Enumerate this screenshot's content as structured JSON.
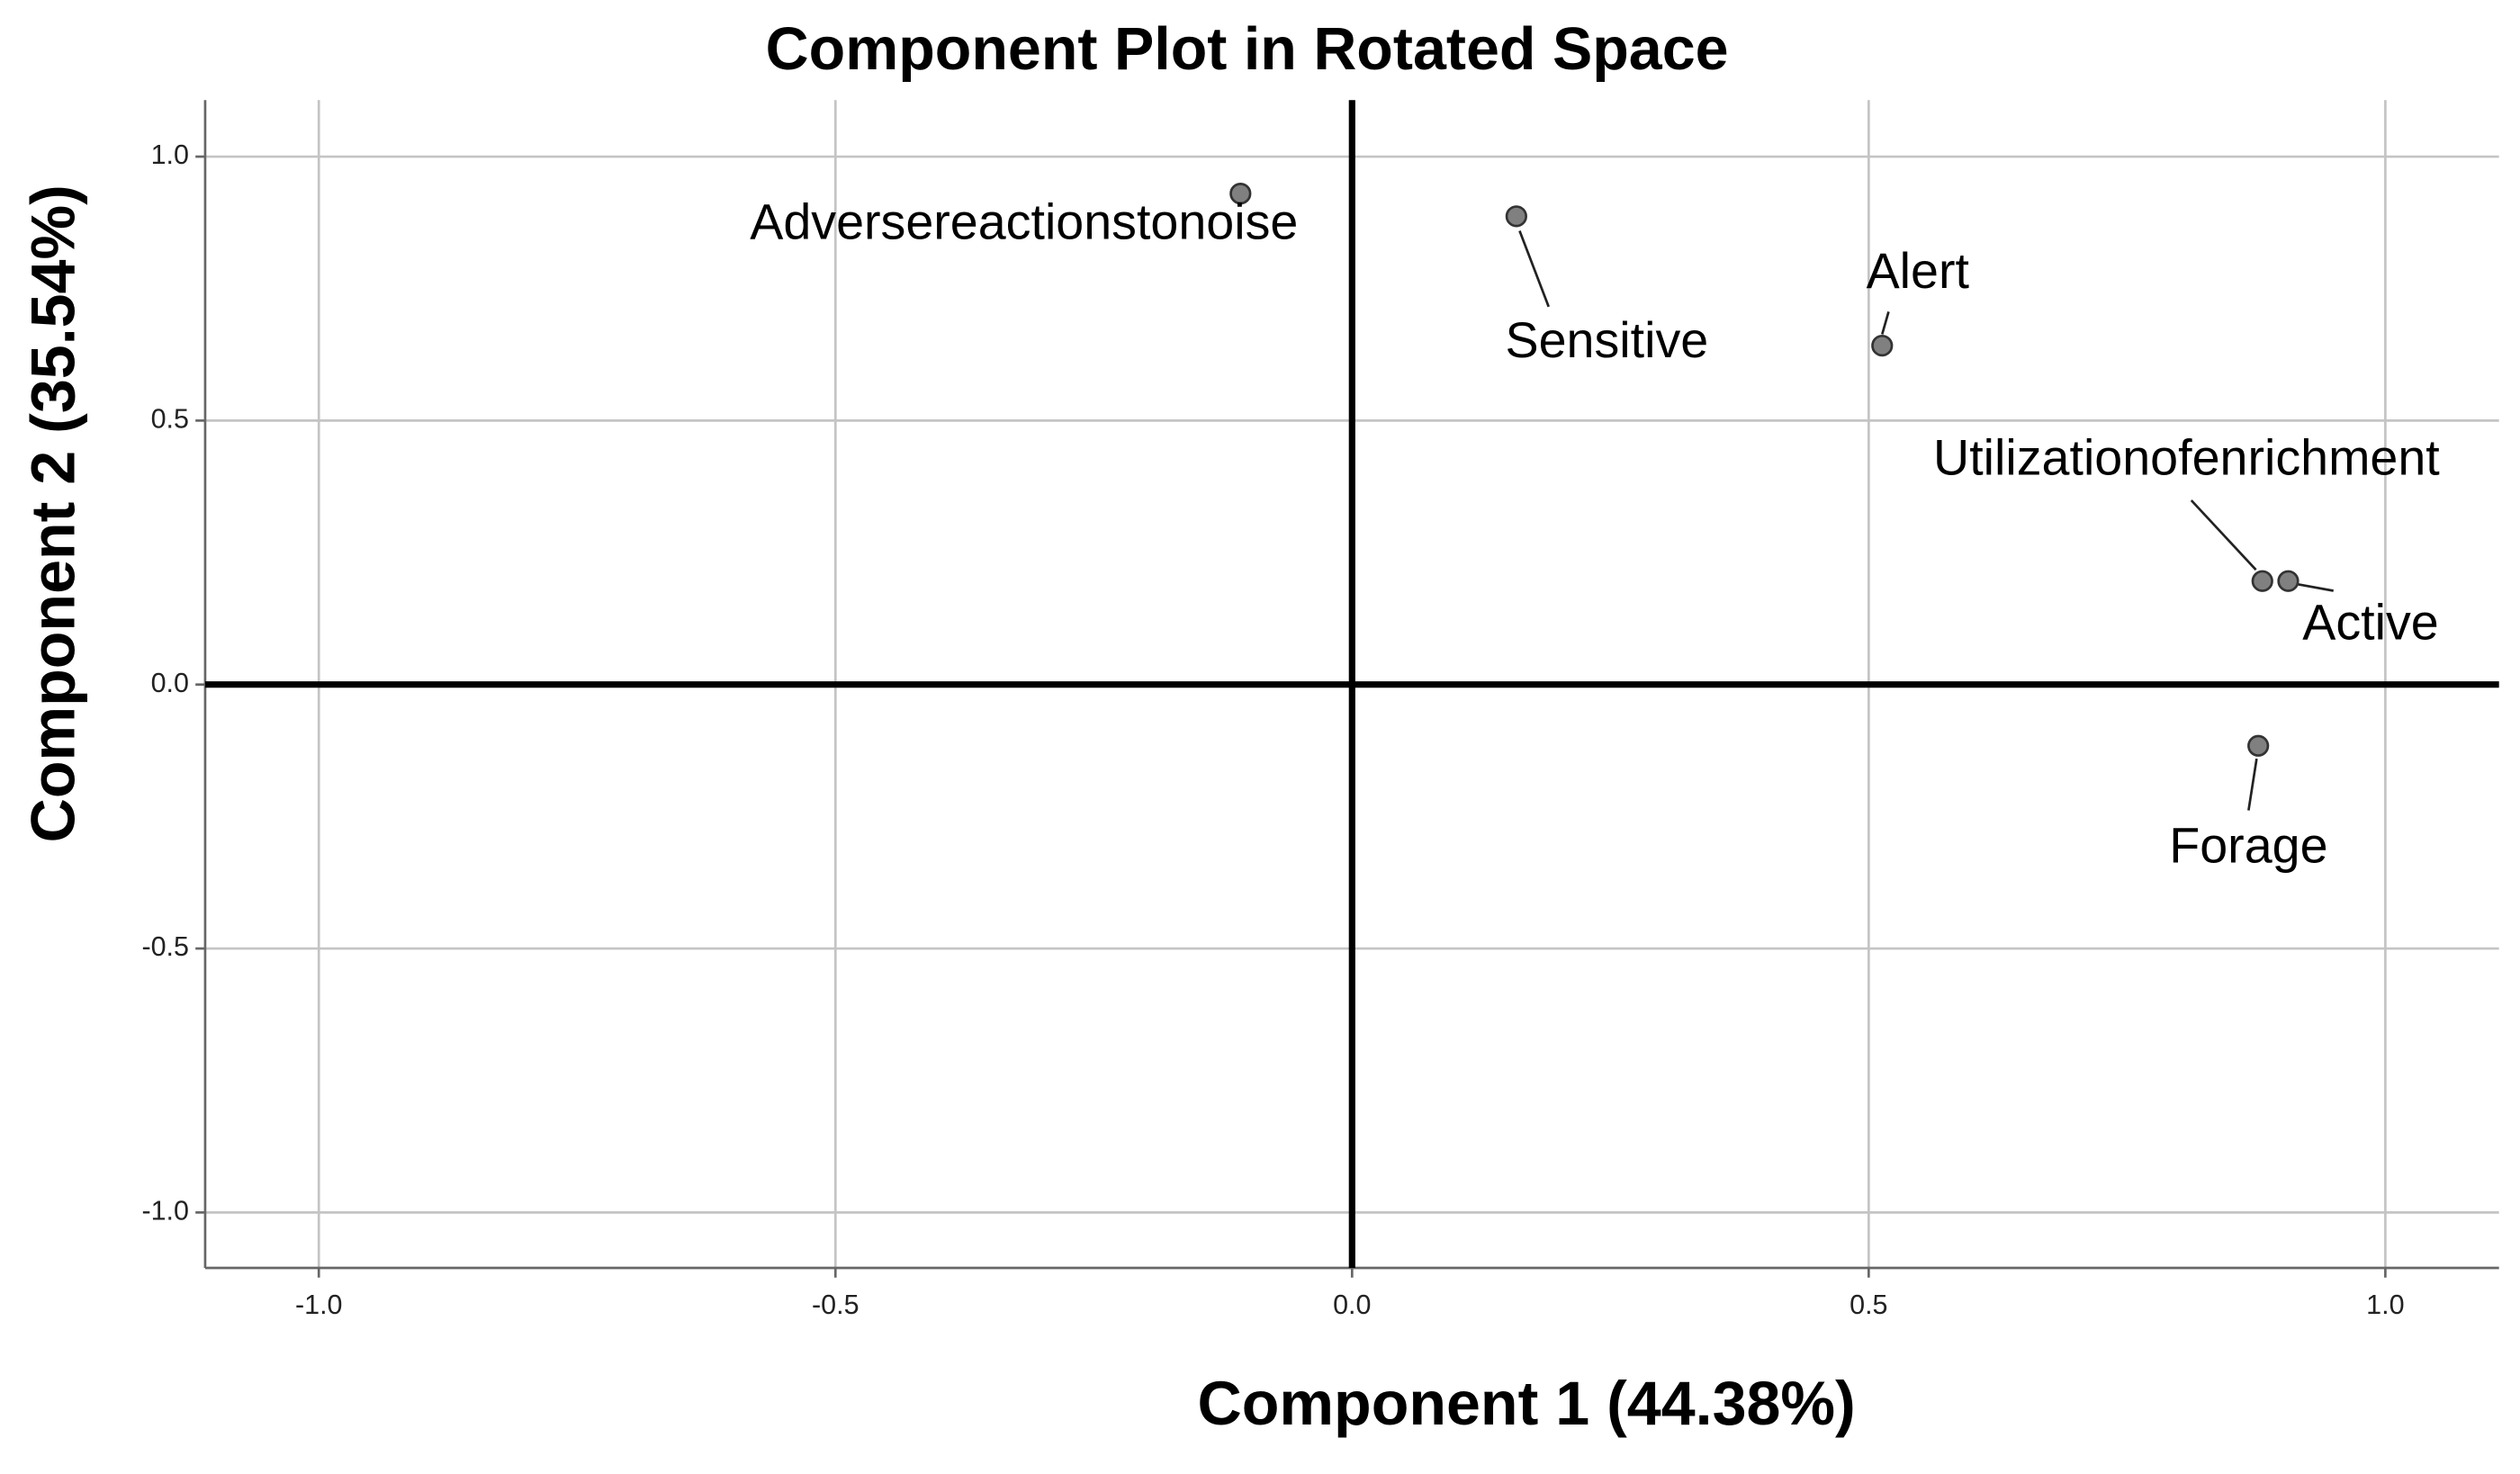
{
  "chart_data": {
    "type": "scatter",
    "title": "Component Plot in Rotated Space",
    "x_label": "Component 1  (44.38%)",
    "y_label": "Component 2  (35.54%)",
    "labels": [
      "Adversereactionstonoise",
      "Sensitive",
      "Alert",
      "Utilizationofenrichment",
      "Active",
      "Forage"
    ],
    "x": [
      -0.108,
      0.159,
      0.513,
      0.881,
      0.906,
      0.877
    ],
    "y": [
      0.93,
      0.887,
      0.642,
      0.196,
      0.196,
      -0.116
    ],
    "color": "#808080",
    "xlim": [
      -1.11,
      1.11
    ],
    "ylim": [
      -1.105,
      1.107
    ],
    "xticks": [
      {
        "value": -1,
        "label": "-1.0"
      },
      {
        "value": -0.5,
        "label": "-0.5"
      },
      {
        "value": 0,
        "label": "0.0"
      },
      {
        "value": 0.5,
        "label": "0.5"
      },
      {
        "value": 1,
        "label": "1.0"
      }
    ],
    "yticks": [
      {
        "value": -1,
        "label": "-1.0"
      },
      {
        "value": -0.5,
        "label": "-0.5"
      },
      {
        "value": 0,
        "label": "0.0"
      },
      {
        "value": 0.5,
        "label": "0.5"
      },
      {
        "value": 1,
        "label": "1.0"
      }
    ],
    "grid": true
  }
}
